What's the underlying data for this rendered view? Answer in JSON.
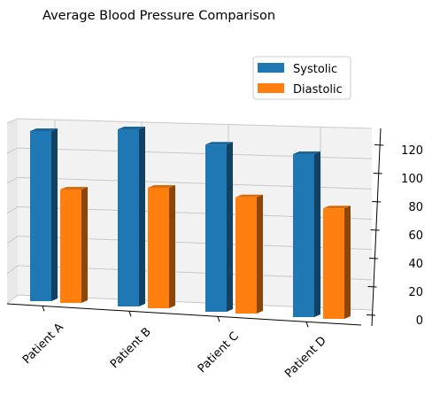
{
  "chart_data": {
    "type": "bar",
    "title": "Average Blood Pressure Comparison",
    "categories": [
      "Patient A",
      "Patient B",
      "Patient C",
      "Patient D"
    ],
    "series": [
      {
        "name": "Systolic",
        "values": [
          120,
          125,
          118,
          115
        ],
        "color": "#1f77b4"
      },
      {
        "name": "Diastolic",
        "values": [
          80,
          85,
          82,
          78
        ],
        "color": "#ff7f0e"
      }
    ],
    "xlabel": "",
    "ylabel": "",
    "zlim": [
      0,
      130
    ],
    "zticks": [
      "0",
      "20",
      "40",
      "60",
      "80",
      "100",
      "120"
    ],
    "grid": true,
    "legend": "upper-right",
    "projection": "3d"
  }
}
